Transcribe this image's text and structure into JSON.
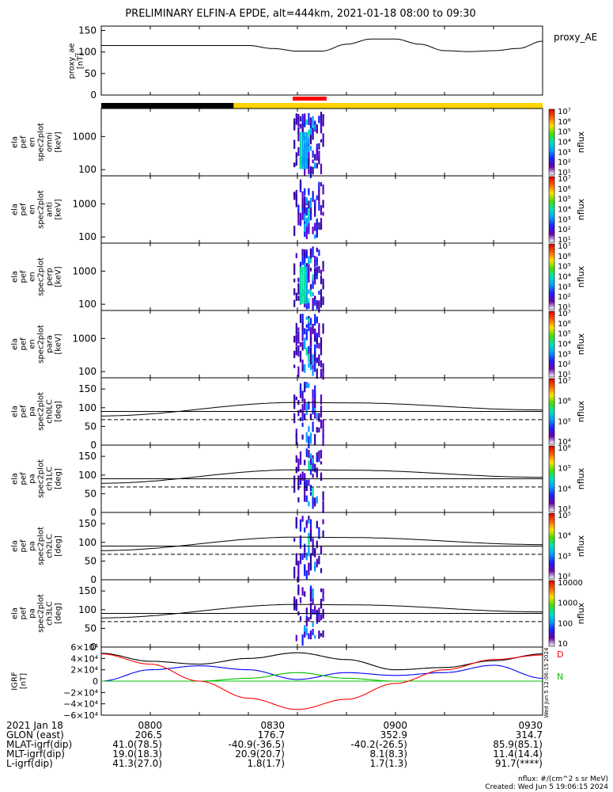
{
  "title": "PRELIMINARY ELFIN-A EPDE, alt=444km, 2021-01-18 08:00 to 09:30",
  "top_panel": {
    "ylabel": "proxy_ae\n[nT]",
    "series_label": "proxy_AE",
    "ticks": [
      "0",
      "50",
      "100",
      "150"
    ]
  },
  "colors": {
    "ae_line": "#000000",
    "bar_night": "#000000",
    "bar_day": "#ffd400",
    "bar_marker": "#ff0000",
    "bx": "#0000ff",
    "by": "#00c000",
    "bz": "#ff0000",
    "bt": "#000000"
  },
  "panels": [
    {
      "ylabel": "ela\npef\nen\nspec2plot\nomni\n[keV]",
      "ticks": [
        "100",
        "1000"
      ],
      "cbar_label": "nflux",
      "cbar_ticks": [
        "10¹",
        "10²",
        "10³",
        "10⁴",
        "10⁵",
        "10⁶",
        "10⁷"
      ]
    },
    {
      "ylabel": "ela\npef\nen\nspec2plot\nanti\n[keV]",
      "ticks": [
        "100",
        "1000"
      ],
      "cbar_label": "nflux",
      "cbar_ticks": [
        "10¹",
        "10²",
        "10³",
        "10⁴",
        "10⁵",
        "10⁶",
        "10⁷"
      ]
    },
    {
      "ylabel": "ela\npef\nen\nspec2plot\nperp\n[keV]",
      "ticks": [
        "100",
        "1000"
      ],
      "cbar_label": "nflux",
      "cbar_ticks": [
        "10¹",
        "10²",
        "10³",
        "10⁴",
        "10⁵",
        "10⁶",
        "10⁷"
      ]
    },
    {
      "ylabel": "ela\npef\nen\nspec2plot\npara\n[keV]",
      "ticks": [
        "100",
        "1000"
      ],
      "cbar_label": "nflux",
      "cbar_ticks": [
        "10¹",
        "10²",
        "10³",
        "10⁴",
        "10⁵",
        "10⁶",
        "10⁷"
      ]
    },
    {
      "ylabel": "ela\npef\npa\nspec2plot\nch0LC\n[deg]",
      "ticks": [
        "0",
        "50",
        "100",
        "150"
      ],
      "cbar_label": "nflux",
      "cbar_ticks": [
        "10⁴",
        "10⁵",
        "10⁶",
        "10⁷"
      ]
    },
    {
      "ylabel": "ela\npef\npa\nspec2plot\nch1LC\n[deg]",
      "ticks": [
        "0",
        "50",
        "100",
        "150"
      ],
      "cbar_label": "nflux",
      "cbar_ticks": [
        "10³",
        "10⁴",
        "10⁵",
        "10⁶"
      ]
    },
    {
      "ylabel": "ela\npef\npa\nspec2plot\nch2LC\n[deg]",
      "ticks": [
        "0",
        "50",
        "100",
        "150"
      ],
      "cbar_label": "nflux",
      "cbar_ticks": [
        "10²",
        "10³",
        "10⁴",
        "10⁵"
      ]
    },
    {
      "ylabel": "ela\npef\npa\nspec2plot\nch3LC\n[deg]",
      "ticks": [
        "0",
        "50",
        "100",
        "150"
      ],
      "cbar_label": "nflux",
      "cbar_ticks": [
        "10",
        "100",
        "1000",
        "10000"
      ]
    }
  ],
  "igrf_panel": {
    "ylabel": "IGRF\n[nT]",
    "ticks": [
      "−6×10⁴",
      "−4×10⁴",
      "−2×10⁴",
      "0",
      "2×10⁴",
      "4×10⁴",
      "6×10⁴"
    ],
    "legend": [
      "D",
      "N"
    ]
  },
  "footer": {
    "rows": [
      {
        "label": "2021 Jan 18",
        "values": [
          "0800",
          "0830",
          "0900",
          "0930"
        ]
      },
      {
        "label": "GLON (east)",
        "values": [
          "206.5",
          "176.7",
          "352.9",
          "314.7"
        ]
      },
      {
        "label": "MLAT-igrf(dip)",
        "values": [
          "41.0(78.5)",
          "-40.9(-36.5)",
          "-40.2(-26.5)",
          "85.9(85.1)"
        ]
      },
      {
        "label": "MLT-igrf(dip)",
        "values": [
          "19.0(18.3)",
          "20.9(20.7)",
          "8.1(8.3)",
          "11.4(14.4)"
        ]
      },
      {
        "label": "L-igrf(dip)",
        "values": [
          "41.3(27.0)",
          "1.8(1.7)",
          "1.7(1.3)",
          "91.7(****)"
        ]
      }
    ],
    "units_note": "nflux: #/(cm^2 s sr MeV)",
    "created": "Created: Wed Jun  5 19:06:15 2024"
  },
  "side_stamp": "Wed Jun  5 12:06:15 2024",
  "chart_data": {
    "type": "heatmap",
    "title": "PRELIMINARY ELFIN-A EPDE, alt=444km, 2021-01-18 08:00 to 09:30",
    "xlim": [
      "08:00",
      "09:30"
    ],
    "x_ticks": [
      "0800",
      "0830",
      "0900",
      "0930"
    ],
    "proxy_ae": {
      "ylim": [
        0,
        150
      ],
      "time_min": [
        0,
        30,
        35,
        40,
        45,
        50,
        55,
        60,
        65,
        70,
        75,
        80,
        85,
        90
      ],
      "values": [
        115,
        115,
        108,
        102,
        102,
        118,
        130,
        130,
        118,
        103,
        101,
        103,
        108,
        125
      ]
    },
    "science_zone_min": [
      40.5,
      44.5
    ],
    "energy_ylim": [
      65,
      7000
    ],
    "pitch_ylim": [
      0,
      180
    ],
    "pitch_reference_deg": {
      "dashed": 68,
      "solid": 90
    },
    "pitch_model_curve": {
      "time_min": [
        0,
        40,
        50,
        90
      ],
      "values": [
        78,
        114,
        113,
        94
      ]
    },
    "igrf": {
      "ylim": [
        -60000,
        60000
      ],
      "time_min": [
        0,
        10,
        20,
        30,
        40,
        50,
        60,
        70,
        80,
        90
      ],
      "series": [
        {
          "name": "Bt",
          "values": [
            49000,
            35000,
            30000,
            40000,
            50000,
            38000,
            20000,
            24000,
            36000,
            48000
          ]
        },
        {
          "name": "Bx",
          "values": [
            0,
            20000,
            27000,
            20000,
            3000,
            15000,
            10000,
            15000,
            28000,
            5000
          ]
        },
        {
          "name": "By",
          "values": [
            0,
            0,
            0,
            5000,
            15000,
            5000,
            0,
            0,
            0,
            0
          ]
        },
        {
          "name": "Bz",
          "values": [
            48000,
            30000,
            0,
            -30000,
            -50000,
            -32000,
            -4000,
            20000,
            38000,
            46000
          ]
        }
      ]
    }
  }
}
